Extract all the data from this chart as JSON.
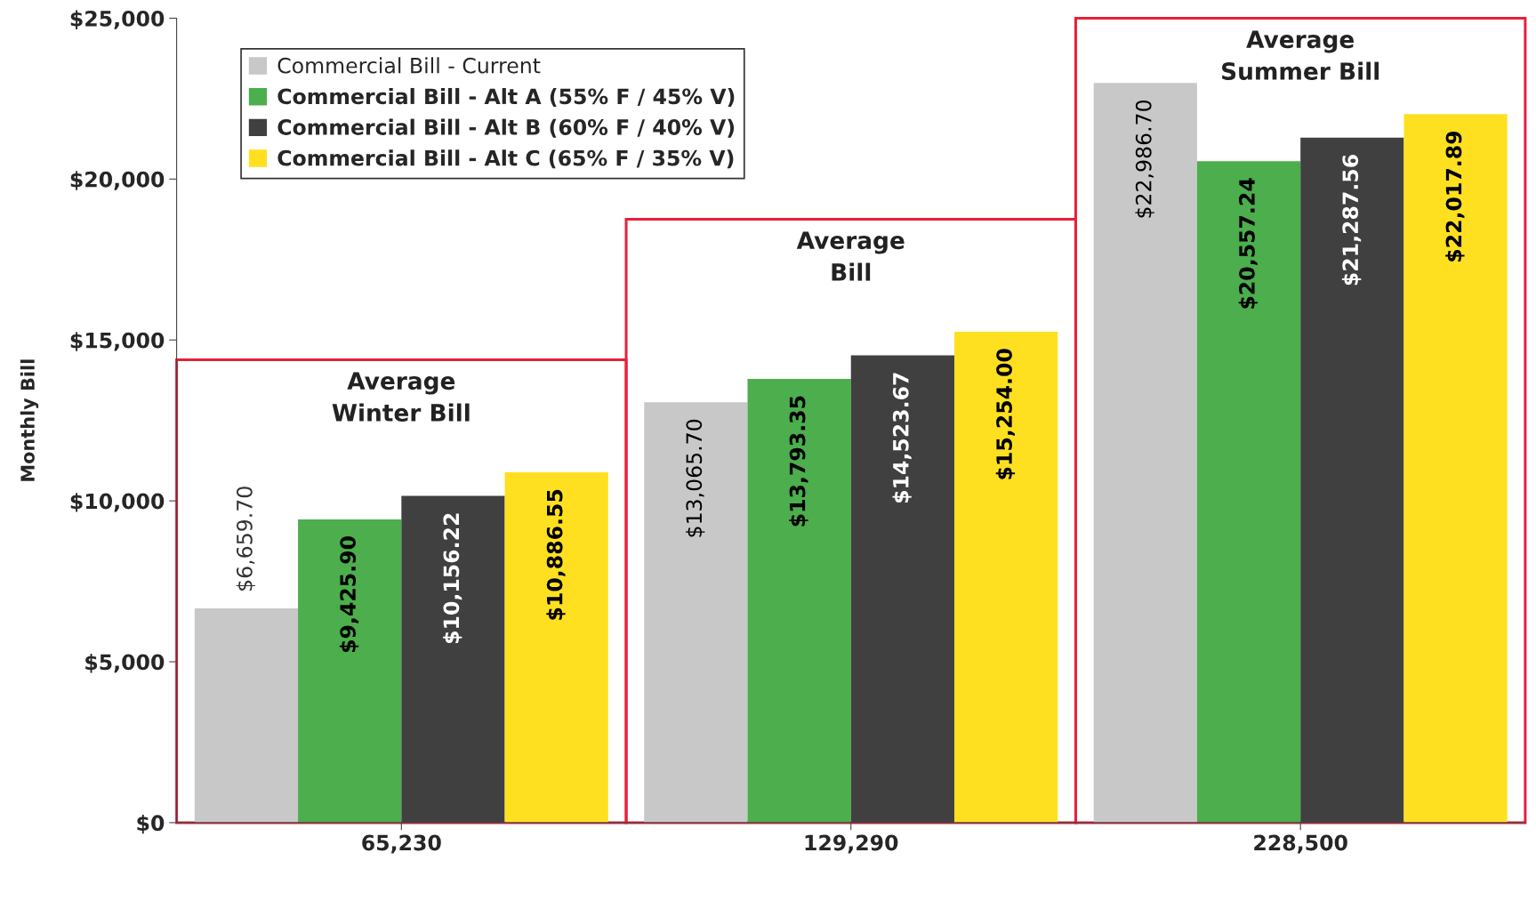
{
  "chart_data": {
    "type": "bar",
    "ylabel": "Monthly Bill",
    "categories": [
      "65,230",
      "129,290",
      "228,500"
    ],
    "series": [
      {
        "name": "Commercial Bill - Current",
        "color": "#c8c8c8",
        "values": [
          6659.7,
          13065.7,
          22986.7
        ],
        "value_labels": [
          "$6,659.70",
          "$13,065.70",
          "$22,986.70"
        ]
      },
      {
        "name": "Commercial Bill - Alt A (55% F / 45% V)",
        "color": "#4cae4c",
        "values": [
          9425.9,
          13793.35,
          20557.24
        ],
        "value_labels": [
          "$9,425.90",
          "$13,793.35",
          "$20,557.24"
        ]
      },
      {
        "name": "Commercial Bill - Alt B (60% F / 40% V)",
        "color": "#404040",
        "values": [
          10156.22,
          14523.67,
          21287.56
        ],
        "value_labels": [
          "$10,156.22",
          "$14,523.67",
          "$21,287.56"
        ]
      },
      {
        "name": "Commercial Bill - Alt C (65% F / 35% V)",
        "color": "#ffe020",
        "values": [
          10886.55,
          15254.0,
          22017.89
        ],
        "value_labels": [
          "$10,886.55",
          "$15,254.00",
          "$22,017.89"
        ]
      }
    ],
    "annotations": [
      "Average\nWinter Bill",
      "Average\nBill",
      "Average\nSummer Bill"
    ],
    "ylim": [
      0,
      25000
    ],
    "yticks": [
      {
        "value": 0,
        "label": "$0"
      },
      {
        "value": 5000,
        "label": "$5,000"
      },
      {
        "value": 10000,
        "label": "$10,000"
      },
      {
        "value": 15000,
        "label": "$15,000"
      },
      {
        "value": 20000,
        "label": "$20,000"
      },
      {
        "value": 25000,
        "label": "$25,000"
      }
    ],
    "grid": false,
    "legend": "top left"
  }
}
